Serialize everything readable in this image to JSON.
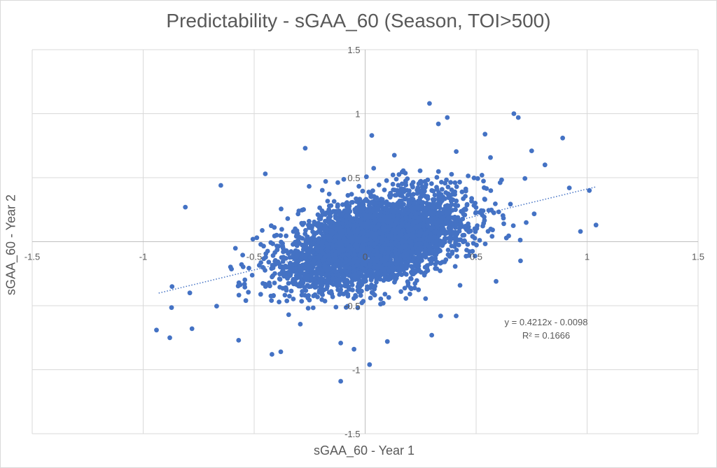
{
  "chart_data": {
    "type": "scatter",
    "title": "Predictability - sGAA_60 (Season, TOI>500)",
    "xlabel": "sGAA_60 - Year 1",
    "ylabel": "sGAA_60 - Year 2",
    "xlim": [
      -1.5,
      1.5
    ],
    "ylim": [
      -1.5,
      1.5
    ],
    "x_ticks": [
      "-1.5",
      "-1",
      "-0.5",
      "0",
      "0.5",
      "1",
      "1.5"
    ],
    "y_ticks": [
      "-1.5",
      "-1",
      "-0.5",
      "0",
      "0.5",
      "1",
      "1.5"
    ],
    "gridlines": true,
    "marker_color": "#4472c4",
    "trendline": {
      "type": "linear",
      "slope": 0.4212,
      "intercept": -0.0098,
      "r_squared": 0.1666,
      "x_range": [
        -0.93,
        1.04
      ],
      "equation_label": "y = 0.4212x - 0.0098",
      "r2_label": "R² = 0.1666",
      "style": "dotted",
      "color": "#4472c4"
    },
    "cloud": {
      "n_points": 4200,
      "x_mean": 0.05,
      "x_sd": 0.2,
      "noise_sd": 0.16,
      "seed": 7
    },
    "outliers": [
      {
        "x": 0.29,
        "y": 1.08
      },
      {
        "x": 0.67,
        "y": 1.0
      },
      {
        "x": 0.69,
        "y": 0.97
      },
      {
        "x": 0.37,
        "y": 0.97
      },
      {
        "x": 0.33,
        "y": 0.92
      },
      {
        "x": 0.89,
        "y": 0.81
      },
      {
        "x": 0.54,
        "y": 0.84
      },
      {
        "x": 0.03,
        "y": 0.83
      },
      {
        "x": -0.27,
        "y": 0.73
      },
      {
        "x": 0.75,
        "y": 0.71
      },
      {
        "x": 0.81,
        "y": 0.6
      },
      {
        "x": 0.92,
        "y": 0.42
      },
      {
        "x": 1.01,
        "y": 0.4
      },
      {
        "x": 1.04,
        "y": 0.13
      },
      {
        "x": 0.97,
        "y": 0.08
      },
      {
        "x": -0.81,
        "y": 0.27
      },
      {
        "x": -0.65,
        "y": 0.44
      },
      {
        "x": -0.45,
        "y": 0.53
      },
      {
        "x": -0.94,
        "y": -0.69
      },
      {
        "x": -0.88,
        "y": -0.75
      },
      {
        "x": -0.78,
        "y": -0.68
      },
      {
        "x": -0.42,
        "y": -0.88
      },
      {
        "x": -0.38,
        "y": -0.86
      },
      {
        "x": -0.11,
        "y": -1.09
      },
      {
        "x": 0.02,
        "y": -0.96
      },
      {
        "x": 0.1,
        "y": -0.78
      },
      {
        "x": 0.34,
        "y": -0.58
      },
      {
        "x": 0.41,
        "y": -0.58
      },
      {
        "x": 0.59,
        "y": -0.31
      },
      {
        "x": 0.7,
        "y": -0.15
      },
      {
        "x": -0.87,
        "y": -0.35
      },
      {
        "x": -0.79,
        "y": -0.4
      },
      {
        "x": -0.57,
        "y": -0.77
      },
      {
        "x": 0.3,
        "y": -0.73
      },
      {
        "x": -0.05,
        "y": -0.84
      }
    ]
  }
}
